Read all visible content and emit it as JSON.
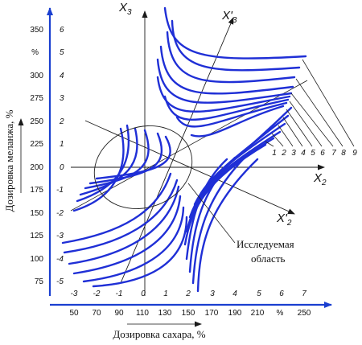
{
  "figure": {
    "axes": {
      "x_coded": {
        "name": "X",
        "sub": "2"
      },
      "y_coded": {
        "name": "X",
        "sub": "3"
      },
      "x_rot": {
        "name": "X'",
        "sub": "2"
      },
      "y_rot": {
        "name": "X'",
        "sub": "3"
      }
    },
    "x_coded_ticks": [
      "-3",
      "-2",
      "-1",
      "0",
      "1",
      "2",
      "3",
      "4",
      "5",
      "6",
      "7"
    ],
    "x_natural_ticks": [
      "50",
      "70",
      "90",
      "110",
      "130",
      "150",
      "170",
      "190",
      "210",
      "%",
      "250"
    ],
    "y_coded_ticks": [
      "6",
      "5",
      "4",
      "3",
      "2",
      "1",
      "0",
      "-1",
      "-2",
      "-3",
      "-4",
      "-5"
    ],
    "y_natural_ticks": [
      "350",
      "%",
      "300",
      "275",
      "250",
      "225",
      "200",
      "175",
      "150",
      "125",
      "100",
      "75"
    ],
    "x_axis_label": "Дозировка сахара, %",
    "y_axis_label": "Дозировка меланжа, %",
    "annotation": {
      "line1": "Исследуемая",
      "line2": "область"
    },
    "contour_labels": [
      "1",
      "2",
      "3",
      "4",
      "5",
      "6",
      "7",
      "8",
      "9"
    ],
    "colors": {
      "axis": "#1a3fd0",
      "contour": "#1f2fd6",
      "ink": "#111111"
    }
  }
}
